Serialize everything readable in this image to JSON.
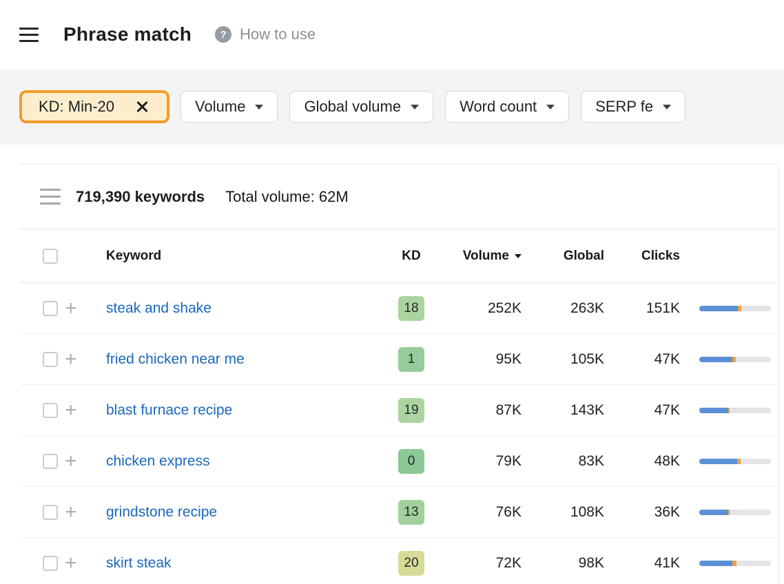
{
  "header": {
    "title": "Phrase match",
    "help_icon": "?",
    "help_label": "How to use"
  },
  "filter_bar": {
    "active_filter": {
      "label": "KD: Min-20"
    },
    "dropdowns": [
      {
        "label": "Volume"
      },
      {
        "label": "Global volume"
      },
      {
        "label": "Word count"
      },
      {
        "label": "SERP fe"
      }
    ]
  },
  "summary": {
    "keywords_count": "719,390 keywords",
    "total_volume": "Total volume: 62M"
  },
  "table": {
    "headers": {
      "keyword": "Keyword",
      "kd": "KD",
      "volume": "Volume",
      "global": "Global",
      "clicks": "Clicks"
    },
    "rows": [
      {
        "keyword": "steak and shake",
        "kd": "18",
        "kd_color": "#abd4a0",
        "volume": "252K",
        "global": "263K",
        "clicks": "151K",
        "bar": {
          "blue": 54,
          "orange": 5
        }
      },
      {
        "keyword": "fried chicken near me",
        "kd": "1",
        "kd_color": "#96cc9b",
        "volume": "95K",
        "global": "105K",
        "clicks": "47K",
        "bar": {
          "blue": 46,
          "orange": 5
        }
      },
      {
        "keyword": "blast furnace recipe",
        "kd": "19",
        "kd_color": "#abd4a0",
        "volume": "87K",
        "global": "143K",
        "clicks": "47K",
        "bar": {
          "blue": 40,
          "orange": 2
        }
      },
      {
        "keyword": "chicken express",
        "kd": "0",
        "kd_color": "#8cc795",
        "volume": "79K",
        "global": "83K",
        "clicks": "48K",
        "bar": {
          "blue": 53,
          "orange": 5
        }
      },
      {
        "keyword": "grindstone recipe",
        "kd": "13",
        "kd_color": "#a2d19e",
        "volume": "76K",
        "global": "108K",
        "clicks": "36K",
        "bar": {
          "blue": 40,
          "orange": 2
        }
      },
      {
        "keyword": "skirt steak",
        "kd": "20",
        "kd_color": "#d6db96",
        "volume": "72K",
        "global": "98K",
        "clicks": "41K",
        "bar": {
          "blue": 46,
          "orange": 6
        }
      }
    ]
  },
  "icons": {
    "plus": "+"
  },
  "colors": {
    "accent_orange": "#f79a28",
    "chip_background": "#fceecd",
    "link_blue": "#1a67bd",
    "bar_blue": "#5b90d6",
    "bar_orange": "#eda33c",
    "bar_track": "#e2e4e7"
  }
}
